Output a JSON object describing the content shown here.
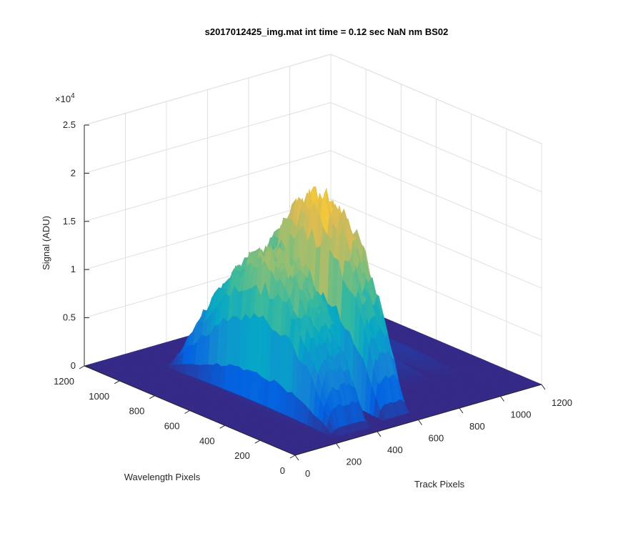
{
  "chart_data": {
    "type": "surface",
    "title": "s2017012425_img.mat int time = 0.12 sec  NaN nm BS02",
    "xlabel": "Track Pixels",
    "ylabel": "Wavelength Pixels",
    "zlabel": "Signal (ADU)",
    "z_exponent_label": "×10",
    "z_exponent_power": "4",
    "x_ticks": [
      "0",
      "200",
      "400",
      "600",
      "800",
      "1000",
      "1200"
    ],
    "y_ticks": [
      "0",
      "200",
      "400",
      "600",
      "800",
      "1000",
      "1200"
    ],
    "z_ticks": [
      "0",
      "0.5",
      "1",
      "1.5",
      "2",
      "2.5"
    ],
    "xlim": [
      0,
      1200
    ],
    "ylim": [
      0,
      1200
    ],
    "zlim": [
      0,
      25000
    ],
    "grid": true,
    "colormap": "parula",
    "colormap_colors": [
      "#352a87",
      "#0363e1",
      "#1485d4",
      "#06a7c6",
      "#38b99e",
      "#92bf73",
      "#d9ba56",
      "#fcce2e",
      "#f9fb0e"
    ],
    "bands": [
      {
        "track_center": 330,
        "track_halfwidth": 95,
        "peak": 16000,
        "wl_start": 70,
        "wl_end": 1010
      },
      {
        "track_center": 560,
        "track_halfwidth": 70,
        "peak": 20500,
        "wl_start": 90,
        "wl_end": 1010
      },
      {
        "track_center": 730,
        "track_halfwidth": 60,
        "peak": 700,
        "wl_start": 300,
        "wl_end": 1000
      },
      {
        "track_center": 870,
        "track_halfwidth": 55,
        "peak": 900,
        "wl_start": 300,
        "wl_end": 1000
      },
      {
        "track_center": 1000,
        "track_halfwidth": 50,
        "peak": 700,
        "wl_start": 300,
        "wl_end": 1000
      }
    ]
  }
}
